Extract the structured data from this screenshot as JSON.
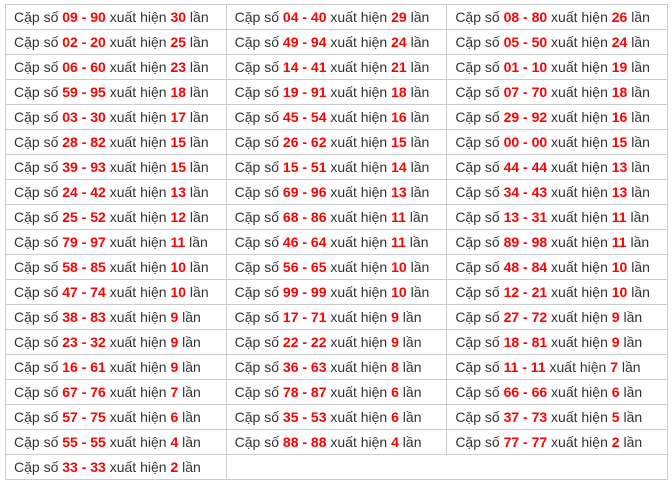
{
  "labels": {
    "pair_prefix": "Cặp số",
    "occurrence": "xuất hiện",
    "unit": "lần",
    "separator": "-"
  },
  "colors": {
    "number_red": "#ff0000",
    "text": "#333333",
    "border": "#cccccc",
    "background": "#ffffff"
  },
  "table": {
    "columns": 3,
    "rows": [
      [
        {
          "a": "09",
          "b": "90",
          "count": "30"
        },
        {
          "a": "04",
          "b": "40",
          "count": "29"
        },
        {
          "a": "08",
          "b": "80",
          "count": "26"
        }
      ],
      [
        {
          "a": "02",
          "b": "20",
          "count": "25"
        },
        {
          "a": "49",
          "b": "94",
          "count": "24"
        },
        {
          "a": "05",
          "b": "50",
          "count": "24"
        }
      ],
      [
        {
          "a": "06",
          "b": "60",
          "count": "23"
        },
        {
          "a": "14",
          "b": "41",
          "count": "21"
        },
        {
          "a": "01",
          "b": "10",
          "count": "19"
        }
      ],
      [
        {
          "a": "59",
          "b": "95",
          "count": "18"
        },
        {
          "a": "19",
          "b": "91",
          "count": "18"
        },
        {
          "a": "07",
          "b": "70",
          "count": "18"
        }
      ],
      [
        {
          "a": "03",
          "b": "30",
          "count": "17"
        },
        {
          "a": "45",
          "b": "54",
          "count": "16"
        },
        {
          "a": "29",
          "b": "92",
          "count": "16"
        }
      ],
      [
        {
          "a": "28",
          "b": "82",
          "count": "15"
        },
        {
          "a": "26",
          "b": "62",
          "count": "15"
        },
        {
          "a": "00",
          "b": "00",
          "count": "15"
        }
      ],
      [
        {
          "a": "39",
          "b": "93",
          "count": "15"
        },
        {
          "a": "15",
          "b": "51",
          "count": "14"
        },
        {
          "a": "44",
          "b": "44",
          "count": "13"
        }
      ],
      [
        {
          "a": "24",
          "b": "42",
          "count": "13"
        },
        {
          "a": "69",
          "b": "96",
          "count": "13"
        },
        {
          "a": "34",
          "b": "43",
          "count": "13"
        }
      ],
      [
        {
          "a": "25",
          "b": "52",
          "count": "12"
        },
        {
          "a": "68",
          "b": "86",
          "count": "11"
        },
        {
          "a": "13",
          "b": "31",
          "count": "11"
        }
      ],
      [
        {
          "a": "79",
          "b": "97",
          "count": "11"
        },
        {
          "a": "46",
          "b": "64",
          "count": "11"
        },
        {
          "a": "89",
          "b": "98",
          "count": "11"
        }
      ],
      [
        {
          "a": "58",
          "b": "85",
          "count": "10"
        },
        {
          "a": "56",
          "b": "65",
          "count": "10"
        },
        {
          "a": "48",
          "b": "84",
          "count": "10"
        }
      ],
      [
        {
          "a": "47",
          "b": "74",
          "count": "10"
        },
        {
          "a": "99",
          "b": "99",
          "count": "10"
        },
        {
          "a": "12",
          "b": "21",
          "count": "10"
        }
      ],
      [
        {
          "a": "38",
          "b": "83",
          "count": "9"
        },
        {
          "a": "17",
          "b": "71",
          "count": "9"
        },
        {
          "a": "27",
          "b": "72",
          "count": "9"
        }
      ],
      [
        {
          "a": "23",
          "b": "32",
          "count": "9"
        },
        {
          "a": "22",
          "b": "22",
          "count": "9"
        },
        {
          "a": "18",
          "b": "81",
          "count": "9"
        }
      ],
      [
        {
          "a": "16",
          "b": "61",
          "count": "9"
        },
        {
          "a": "36",
          "b": "63",
          "count": "8"
        },
        {
          "a": "11",
          "b": "11",
          "count": "7"
        }
      ],
      [
        {
          "a": "67",
          "b": "76",
          "count": "7"
        },
        {
          "a": "78",
          "b": "87",
          "count": "6"
        },
        {
          "a": "66",
          "b": "66",
          "count": "6"
        }
      ],
      [
        {
          "a": "57",
          "b": "75",
          "count": "6"
        },
        {
          "a": "35",
          "b": "53",
          "count": "6"
        },
        {
          "a": "37",
          "b": "73",
          "count": "5"
        }
      ],
      [
        {
          "a": "55",
          "b": "55",
          "count": "4"
        },
        {
          "a": "88",
          "b": "88",
          "count": "4"
        },
        {
          "a": "77",
          "b": "77",
          "count": "2"
        }
      ],
      [
        {
          "a": "33",
          "b": "33",
          "count": "2"
        },
        {
          "colspan": 2
        }
      ]
    ]
  }
}
